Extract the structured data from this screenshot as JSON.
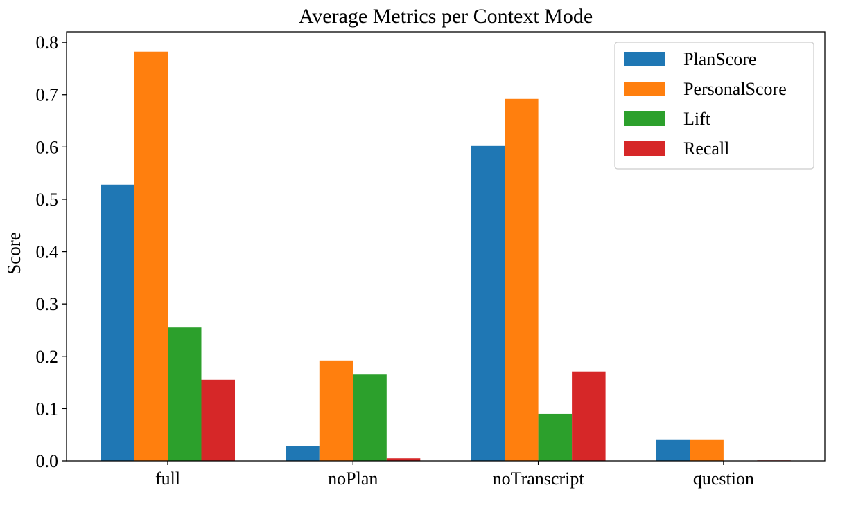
{
  "chart_data": {
    "type": "bar",
    "title": "Average Metrics per Context Mode",
    "xlabel": "",
    "ylabel": "Score",
    "categories": [
      "full",
      "noPlan",
      "noTranscript",
      "question"
    ],
    "series": [
      {
        "name": "PlanScore",
        "color": "#1f77b4",
        "values": [
          0.528,
          0.028,
          0.602,
          0.04
        ]
      },
      {
        "name": "PersonalScore",
        "color": "#ff7f0e",
        "values": [
          0.782,
          0.192,
          0.692,
          0.04
        ]
      },
      {
        "name": "Lift",
        "color": "#2ca02c",
        "values": [
          0.255,
          0.165,
          0.09,
          0.0
        ]
      },
      {
        "name": "Recall",
        "color": "#d62728",
        "values": [
          0.155,
          0.005,
          0.171,
          0.001
        ]
      }
    ],
    "ylim": [
      0.0,
      0.82
    ],
    "yticks": [
      "0.0",
      "0.1",
      "0.2",
      "0.3",
      "0.4",
      "0.5",
      "0.6",
      "0.7",
      "0.8"
    ],
    "grid": false,
    "legend_position": "top-right"
  }
}
